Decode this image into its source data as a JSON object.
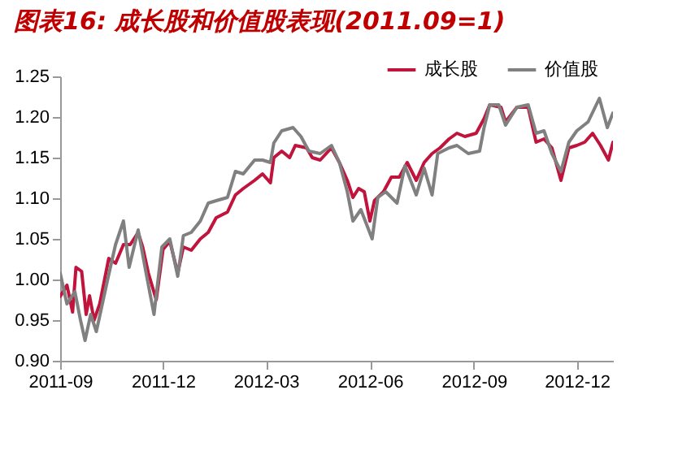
{
  "chart_data": {
    "type": "line",
    "title": "图表16: 成长股和价值股表现(2011.09=1)",
    "xlim": [
      "2011-09-01",
      "2013-01-02"
    ],
    "xticks": [
      "2011-09",
      "2011-12",
      "2012-03",
      "2012-06",
      "2012-09",
      "2012-12"
    ],
    "ylim": [
      0.9,
      1.25
    ],
    "yticks": [
      {
        "value": 0.9,
        "label": "0.90"
      },
      {
        "value": 0.95,
        "label": "0.95"
      },
      {
        "value": 1.0,
        "label": "1.00"
      },
      {
        "value": 1.05,
        "label": "1.05"
      },
      {
        "value": 1.1,
        "label": "1.10"
      },
      {
        "value": 1.15,
        "label": "1.15"
      },
      {
        "value": 1.2,
        "label": "1.20"
      },
      {
        "value": 1.25,
        "label": "1.25"
      }
    ],
    "grid": false,
    "legend": "top right",
    "line_style": "solid",
    "series": [
      {
        "name": "成长股",
        "color": "#c0143c",
        "x": [
          "2011-09-01",
          "2011-09-07",
          "2011-09-12",
          "2011-09-15",
          "2011-09-20",
          "2011-09-24",
          "2011-09-27",
          "2011-10-01",
          "2011-10-06",
          "2011-10-14",
          "2011-10-20",
          "2011-10-27",
          "2011-11-02",
          "2011-11-09",
          "2011-11-13",
          "2011-11-18",
          "2011-11-25",
          "2011-12-01",
          "2011-12-07",
          "2011-12-14",
          "2011-12-19",
          "2011-12-26",
          "2012-01-03",
          "2012-01-10",
          "2012-01-17",
          "2012-01-27",
          "2012-02-03",
          "2012-02-10",
          "2012-02-20",
          "2012-02-27",
          "2012-03-05",
          "2012-03-08",
          "2012-03-15",
          "2012-03-22",
          "2012-03-27",
          "2012-04-06",
          "2012-04-11",
          "2012-04-18",
          "2012-04-28",
          "2012-05-05",
          "2012-05-12",
          "2012-05-17",
          "2012-05-22",
          "2012-05-27",
          "2012-06-01",
          "2012-06-05",
          "2012-06-13",
          "2012-06-20",
          "2012-06-27",
          "2012-07-04",
          "2012-07-12",
          "2012-07-19",
          "2012-07-26",
          "2012-08-02",
          "2012-08-10",
          "2012-08-17",
          "2012-08-24",
          "2012-09-03",
          "2012-09-10",
          "2012-09-15",
          "2012-09-25",
          "2012-09-29",
          "2012-10-09",
          "2012-10-19",
          "2012-10-26",
          "2012-11-02",
          "2012-11-09",
          "2012-11-17",
          "2012-11-24",
          "2012-12-01",
          "2012-12-08",
          "2012-12-15",
          "2012-12-22",
          "2012-12-29",
          "2013-01-02"
        ],
        "values": [
          0.979,
          0.993,
          0.96,
          1.015,
          1.01,
          0.957,
          0.98,
          0.95,
          0.97,
          1.026,
          1.02,
          1.043,
          1.043,
          1.058,
          1.04,
          1.008,
          0.975,
          1.037,
          1.047,
          1.008,
          1.04,
          1.036,
          1.05,
          1.058,
          1.076,
          1.083,
          1.104,
          1.112,
          1.122,
          1.13,
          1.119,
          1.15,
          1.158,
          1.15,
          1.165,
          1.162,
          1.15,
          1.147,
          1.162,
          1.144,
          1.122,
          1.101,
          1.112,
          1.108,
          1.072,
          1.097,
          1.108,
          1.126,
          1.126,
          1.144,
          1.122,
          1.144,
          1.155,
          1.162,
          1.173,
          1.18,
          1.176,
          1.18,
          1.198,
          1.215,
          1.212,
          1.194,
          1.212,
          1.212,
          1.169,
          1.173,
          1.162,
          1.122,
          1.162,
          1.165,
          1.169,
          1.18,
          1.165,
          1.147,
          1.169
        ]
      },
      {
        "name": "价值股",
        "color": "#808080",
        "x": [
          "2011-09-01",
          "2011-09-07",
          "2011-09-14",
          "2011-09-19",
          "2011-09-23",
          "2011-09-28",
          "2011-10-03",
          "2011-10-13",
          "2011-10-20",
          "2011-10-27",
          "2011-11-01",
          "2011-11-09",
          "2011-11-16",
          "2011-11-23",
          "2011-11-30",
          "2011-12-07",
          "2011-12-14",
          "2011-12-19",
          "2011-12-26",
          "2012-01-03",
          "2012-01-10",
          "2012-01-17",
          "2012-01-27",
          "2012-02-03",
          "2012-02-10",
          "2012-02-20",
          "2012-02-27",
          "2012-03-05",
          "2012-03-08",
          "2012-03-15",
          "2012-03-25",
          "2012-04-01",
          "2012-04-08",
          "2012-04-18",
          "2012-04-28",
          "2012-05-05",
          "2012-05-12",
          "2012-05-17",
          "2012-05-24",
          "2012-06-03",
          "2012-06-08",
          "2012-06-15",
          "2012-06-25",
          "2012-07-02",
          "2012-07-12",
          "2012-07-19",
          "2012-07-26",
          "2012-07-31",
          "2012-08-10",
          "2012-08-17",
          "2012-08-27",
          "2012-09-06",
          "2012-09-10",
          "2012-09-15",
          "2012-09-23",
          "2012-09-29",
          "2012-10-09",
          "2012-10-19",
          "2012-10-26",
          "2012-11-02",
          "2012-11-09",
          "2012-11-17",
          "2012-11-24",
          "2012-12-01",
          "2012-12-11",
          "2012-12-21",
          "2012-12-28",
          "2013-01-02"
        ],
        "values": [
          1.008,
          0.97,
          0.985,
          0.95,
          0.925,
          0.957,
          0.936,
          1.0,
          1.043,
          1.072,
          1.015,
          1.061,
          1.008,
          0.957,
          1.04,
          1.05,
          1.004,
          1.054,
          1.058,
          1.072,
          1.094,
          1.097,
          1.101,
          1.133,
          1.13,
          1.147,
          1.147,
          1.144,
          1.168,
          1.183,
          1.187,
          1.176,
          1.158,
          1.155,
          1.165,
          1.144,
          1.108,
          1.072,
          1.086,
          1.05,
          1.101,
          1.108,
          1.094,
          1.14,
          1.104,
          1.137,
          1.104,
          1.155,
          1.162,
          1.165,
          1.155,
          1.158,
          1.187,
          1.215,
          1.215,
          1.19,
          1.212,
          1.215,
          1.18,
          1.183,
          1.155,
          1.133,
          1.169,
          1.183,
          1.194,
          1.223,
          1.187,
          1.205
        ]
      }
    ]
  }
}
